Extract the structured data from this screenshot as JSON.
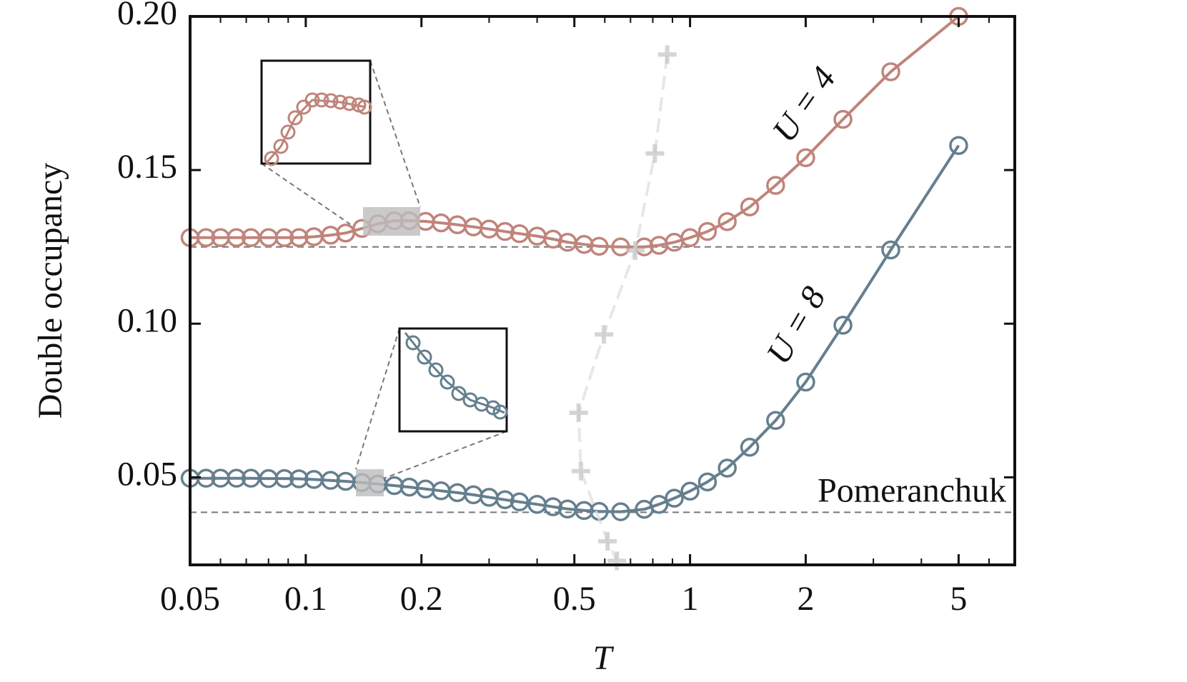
{
  "chart_data": {
    "type": "line",
    "xlabel": "T",
    "ylabel": "Double occupancy",
    "xscale": "log",
    "xlim": [
      0.05,
      7
    ],
    "ylim": [
      0.0215,
      0.2
    ],
    "xticks": [
      0.05,
      0.1,
      0.2,
      0.5,
      1,
      2,
      5
    ],
    "xminorticks": [
      0.06,
      0.07,
      0.08,
      0.09,
      0.3,
      0.4,
      0.6,
      0.7,
      0.8,
      0.9,
      3,
      4,
      6,
      7
    ],
    "yticks": [
      {
        "value": 0.05,
        "label": "0.05"
      },
      {
        "value": 0.1,
        "label": "0.10"
      },
      0.15,
      {
        "value": 0.2,
        "label": "0.20"
      }
    ],
    "x": [
      0.05,
      0.055,
      0.06,
      0.066,
      0.072,
      0.08,
      0.088,
      0.096,
      0.105,
      0.116,
      0.127,
      0.14,
      0.154,
      0.17,
      0.186,
      0.205,
      0.225,
      0.248,
      0.273,
      0.3,
      0.33,
      0.36,
      0.4,
      0.44,
      0.48,
      0.53,
      0.58,
      0.66,
      0.76,
      0.83,
      0.91,
      1.0,
      1.11,
      1.25,
      1.43,
      1.67,
      2.0,
      2.5,
      3.33,
      5.0
    ],
    "series": [
      {
        "color": "#c0847b",
        "values": [
          0.128,
          0.128,
          0.128,
          0.128,
          0.128,
          0.128,
          0.128,
          0.128,
          0.1283,
          0.1288,
          0.1295,
          0.131,
          0.1325,
          0.1335,
          0.1335,
          0.1333,
          0.1328,
          0.1322,
          0.1315,
          0.1308,
          0.13,
          0.1293,
          0.1285,
          0.1275,
          0.1265,
          0.1258,
          0.1252,
          0.125,
          0.125,
          0.1255,
          0.1265,
          0.128,
          0.13,
          0.1332,
          0.138,
          0.145,
          0.154,
          0.1665,
          0.182,
          0.2
        ]
      },
      {
        "color": "#657f8e",
        "values": [
          0.0497,
          0.0497,
          0.0497,
          0.0497,
          0.0497,
          0.0496,
          0.0496,
          0.0495,
          0.0493,
          0.049,
          0.0487,
          0.0483,
          0.0478,
          0.0473,
          0.0468,
          0.0462,
          0.0456,
          0.045,
          0.0443,
          0.0435,
          0.0427,
          0.042,
          0.0412,
          0.0404,
          0.0397,
          0.0392,
          0.0389,
          0.0388,
          0.0396,
          0.0412,
          0.0432,
          0.0455,
          0.0485,
          0.053,
          0.0598,
          0.0685,
          0.081,
          0.0995,
          0.124,
          0.158
        ]
      },
      {
        "type": "scatter",
        "color": "#c8c8c8",
        "x": [
          0.872,
          0.81,
          0.72,
          0.597,
          0.513,
          0.52,
          0.61,
          0.645
        ],
        "values": [
          0.1876,
          0.1554,
          0.1238,
          0.0965,
          0.071,
          0.052,
          0.0292,
          0.0228
        ]
      }
    ],
    "hlines": [
      {
        "value": 0.125
      },
      {
        "value": 0.0386,
        "label": "Pomeranchuk"
      }
    ],
    "annotations": [
      "U = 4",
      "U = 8"
    ]
  }
}
